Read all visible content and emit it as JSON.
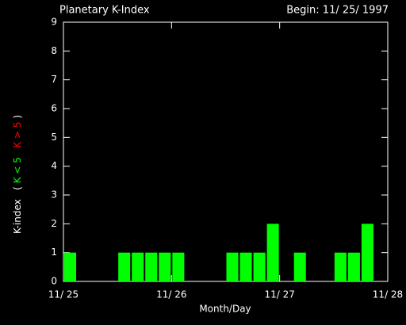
{
  "chart_data": {
    "type": "bar",
    "title": "Planetary K-Index",
    "subtitle": "Begin: 11/ 25/ 1997",
    "x_label": "Month/Day",
    "y_label": {
      "name": "K-index",
      "open": "(",
      "low": {
        "text": "K < 5",
        "color": "#00ff00"
      },
      "high": {
        "text": "K > 5",
        "color": "#ff0000"
      },
      "close": ")"
    },
    "x": [
      0,
      3,
      6,
      9,
      12,
      15,
      18,
      21,
      24,
      27,
      30,
      33,
      36,
      39,
      42,
      45,
      48,
      51,
      54,
      57,
      60,
      63,
      66,
      69
    ],
    "values": [
      1,
      0,
      0,
      0,
      1,
      1,
      1,
      1,
      1,
      0,
      0,
      0,
      1,
      1,
      1,
      2,
      0,
      1,
      0,
      0,
      1,
      1,
      2,
      0
    ],
    "bar_width": 3,
    "color": "#00ff00",
    "xlim": [
      0,
      72
    ],
    "xticks": [
      {
        "value": 0,
        "label": "11/ 25"
      },
      {
        "value": 24,
        "label": "11/ 26"
      },
      {
        "value": 48,
        "label": "11/ 27"
      },
      {
        "value": 72,
        "label": "11/ 28"
      }
    ],
    "ylim": [
      0,
      9
    ],
    "yticks": [
      0,
      1,
      2,
      3,
      4,
      5,
      6,
      7,
      8,
      9
    ]
  }
}
